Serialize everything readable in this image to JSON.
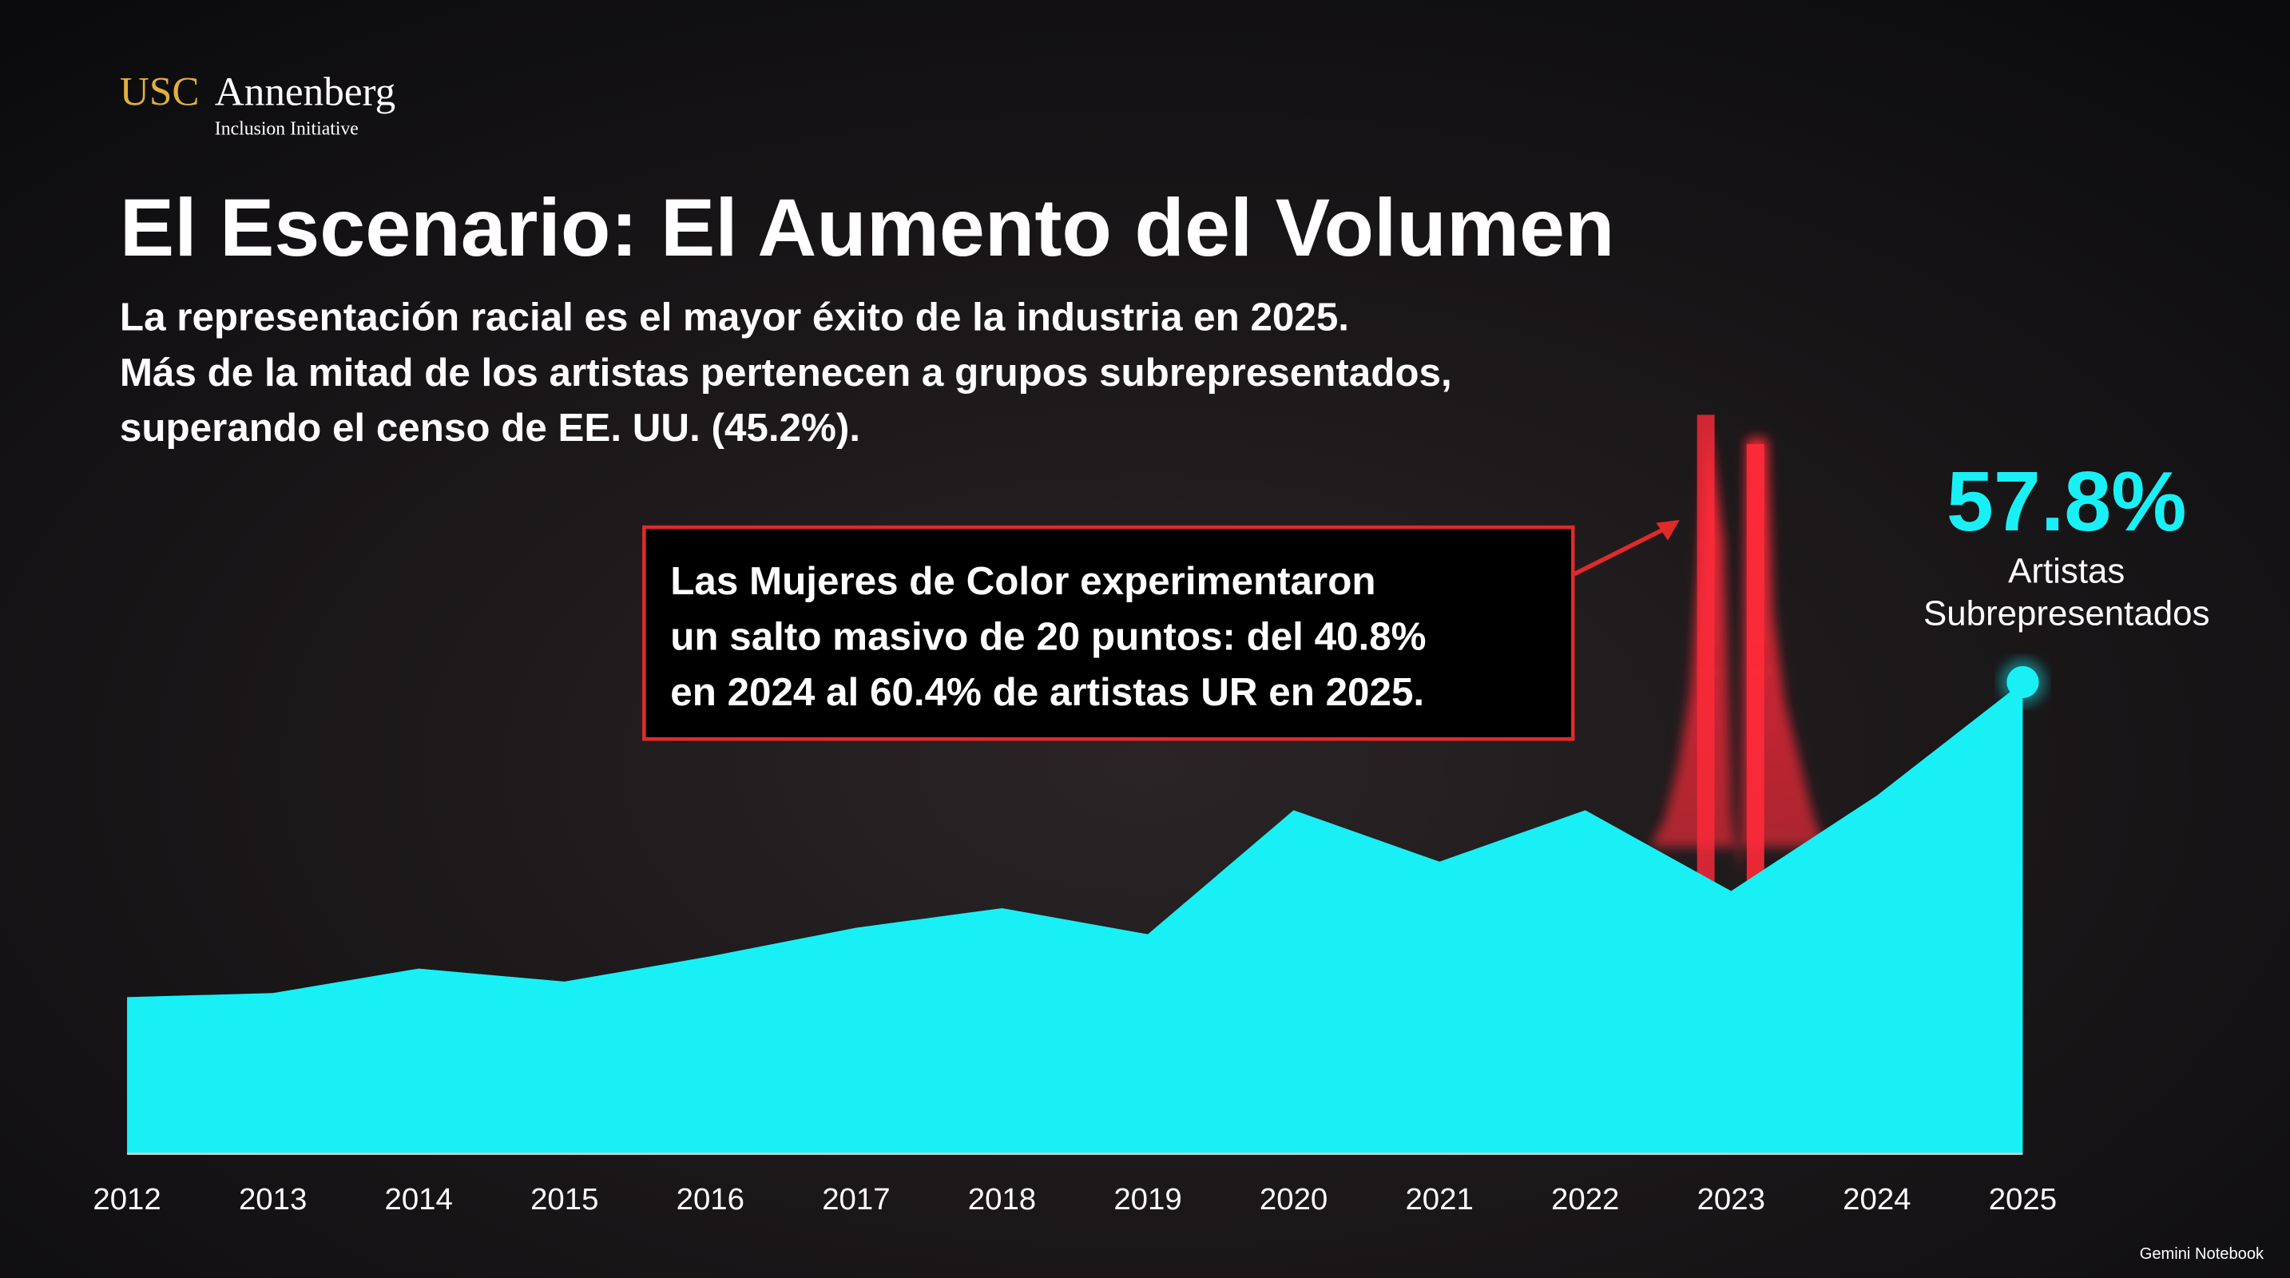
{
  "header": {
    "logo_usc": "USC",
    "logo_annenberg": "Annenberg",
    "logo_sub": "Inclusion Initiative",
    "title": "El Escenario: El Aumento del Volumen",
    "subtitle": [
      "La representación racial es el mayor éxito de la industria en 2025.",
      "Más de la mitad de los artistas pertenecen a grupos subrepresentados,",
      "superando el censo de EE. UU. (45.2%)."
    ]
  },
  "chart_data": {
    "type": "area",
    "categories": [
      "2012",
      "2013",
      "2014",
      "2015",
      "2016",
      "2017",
      "2018",
      "2019",
      "2020",
      "2021",
      "2022",
      "2023",
      "2024",
      "2025"
    ],
    "series": [
      {
        "color": "#19f0f5",
        "values": [
          19.2,
          19.7,
          22.7,
          21.1,
          24.2,
          27.7,
          30.1,
          26.9,
          42.1,
          35.8,
          42.1,
          32.2,
          43.9,
          57.8
        ],
        "value_labels": [
          null,
          null,
          null,
          null,
          null,
          null,
          null,
          null,
          null,
          null,
          null,
          null,
          null,
          "57.8%"
        ]
      }
    ],
    "stat_caption": [
      "Artistas",
      "Subrepresentados"
    ],
    "callout": [
      "Las Mujeres de Color experimentaron",
      "un salto masivo de 20 puntos: del 40.8%",
      "en 2024 al 60.4% de artistas UR en 2025."
    ]
  },
  "footer": {
    "brand": "Gemini Notebook"
  }
}
